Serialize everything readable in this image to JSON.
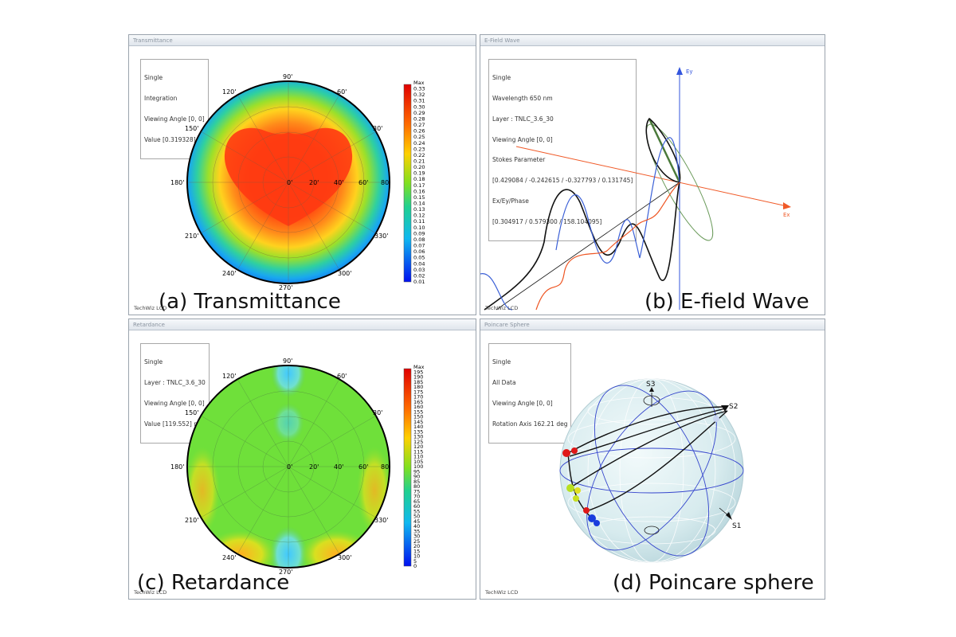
{
  "panels": {
    "transmittance": {
      "title": "Transmittance",
      "info": [
        "Single",
        "Integration",
        "Viewing Angle [0, 0]",
        "Value [0.319328]"
      ],
      "caption": "(a) Transmittance",
      "footer": "TechWiz LCD",
      "angle_labels": [
        "90'",
        "60'",
        "30'",
        "0'",
        "330'",
        "300'",
        "270'",
        "240'",
        "210'",
        "180'",
        "150'",
        "120'"
      ],
      "radial_labels": [
        "0'",
        "20'",
        "40'",
        "60'",
        "80'"
      ],
      "colorbar_labels": [
        "Max",
        "0.33",
        "0.32",
        "0.31",
        "0.30",
        "0.29",
        "0.28",
        "0.27",
        "0.26",
        "0.25",
        "0.24",
        "0.23",
        "0.22",
        "0.21",
        "0.20",
        "0.19",
        "0.18",
        "0.17",
        "0.16",
        "0.15",
        "0.14",
        "0.13",
        "0.12",
        "0.11",
        "0.10",
        "0.09",
        "0.08",
        "0.07",
        "0.06",
        "0.05",
        "0.04",
        "0.03",
        "0.02",
        "0.01"
      ]
    },
    "efield": {
      "title": "E-Field Wave",
      "info": [
        "Single",
        "Wavelength 650 nm",
        "Layer : TNLC_3.6_30",
        "Viewing Angle [0, 0]",
        "Stokes Parameter",
        "[0.429084 / -0.242615 / -0.327793 / 0.131745]",
        "Ex/Ey/Phase",
        "[0.304917 / 0.579300 / 158.104095]"
      ],
      "caption": "(b) E-field Wave",
      "footer": "TechWiz LCD",
      "ey_label": "Ey",
      "ex_label": "Ex"
    },
    "retardance": {
      "title": "Retardance",
      "info": [
        "Single",
        "Layer : TNLC_3.6_30",
        "Viewing Angle [0, 0]",
        "Value [119.552] nm"
      ],
      "caption": "(c) Retardance",
      "footer": "TechWiz LCD",
      "angle_labels": [
        "90'",
        "60'",
        "30'",
        "0'",
        "330'",
        "300'",
        "270'",
        "240'",
        "210'",
        "180'",
        "150'",
        "120'"
      ],
      "radial_labels": [
        "0'",
        "20'",
        "40'",
        "60'",
        "80'"
      ],
      "colorbar_labels": [
        "Max",
        "195",
        "190",
        "185",
        "180",
        "175",
        "170",
        "165",
        "160",
        "155",
        "150",
        "145",
        "140",
        "135",
        "130",
        "125",
        "120",
        "115",
        "110",
        "105",
        "100",
        "95",
        "90",
        "85",
        "80",
        "75",
        "70",
        "65",
        "60",
        "55",
        "50",
        "45",
        "40",
        "35",
        "30",
        "25",
        "20",
        "15",
        "10",
        "5",
        "0"
      ]
    },
    "poincare": {
      "title": "Poincare Sphere",
      "info": [
        "Single",
        "All Data",
        "Viewing Angle [0, 0]",
        "Rotation Axis 162.21 deg"
      ],
      "caption": "(d) Poincare sphere",
      "footer": "TechWiz LCD",
      "s1_label": "S1",
      "s2_label": "S2",
      "s3_label": "S3"
    }
  },
  "colors": {
    "frame_border": "#9aa3ad",
    "ex_axis": "#f05a28",
    "ey_axis": "#3355dd",
    "wave_black": "#111111",
    "wave_blue": "#3a5fd6",
    "wave_orange": "#ee5522",
    "ellipse_green": "#6a9a5a",
    "sphere": "#d9ecef"
  }
}
